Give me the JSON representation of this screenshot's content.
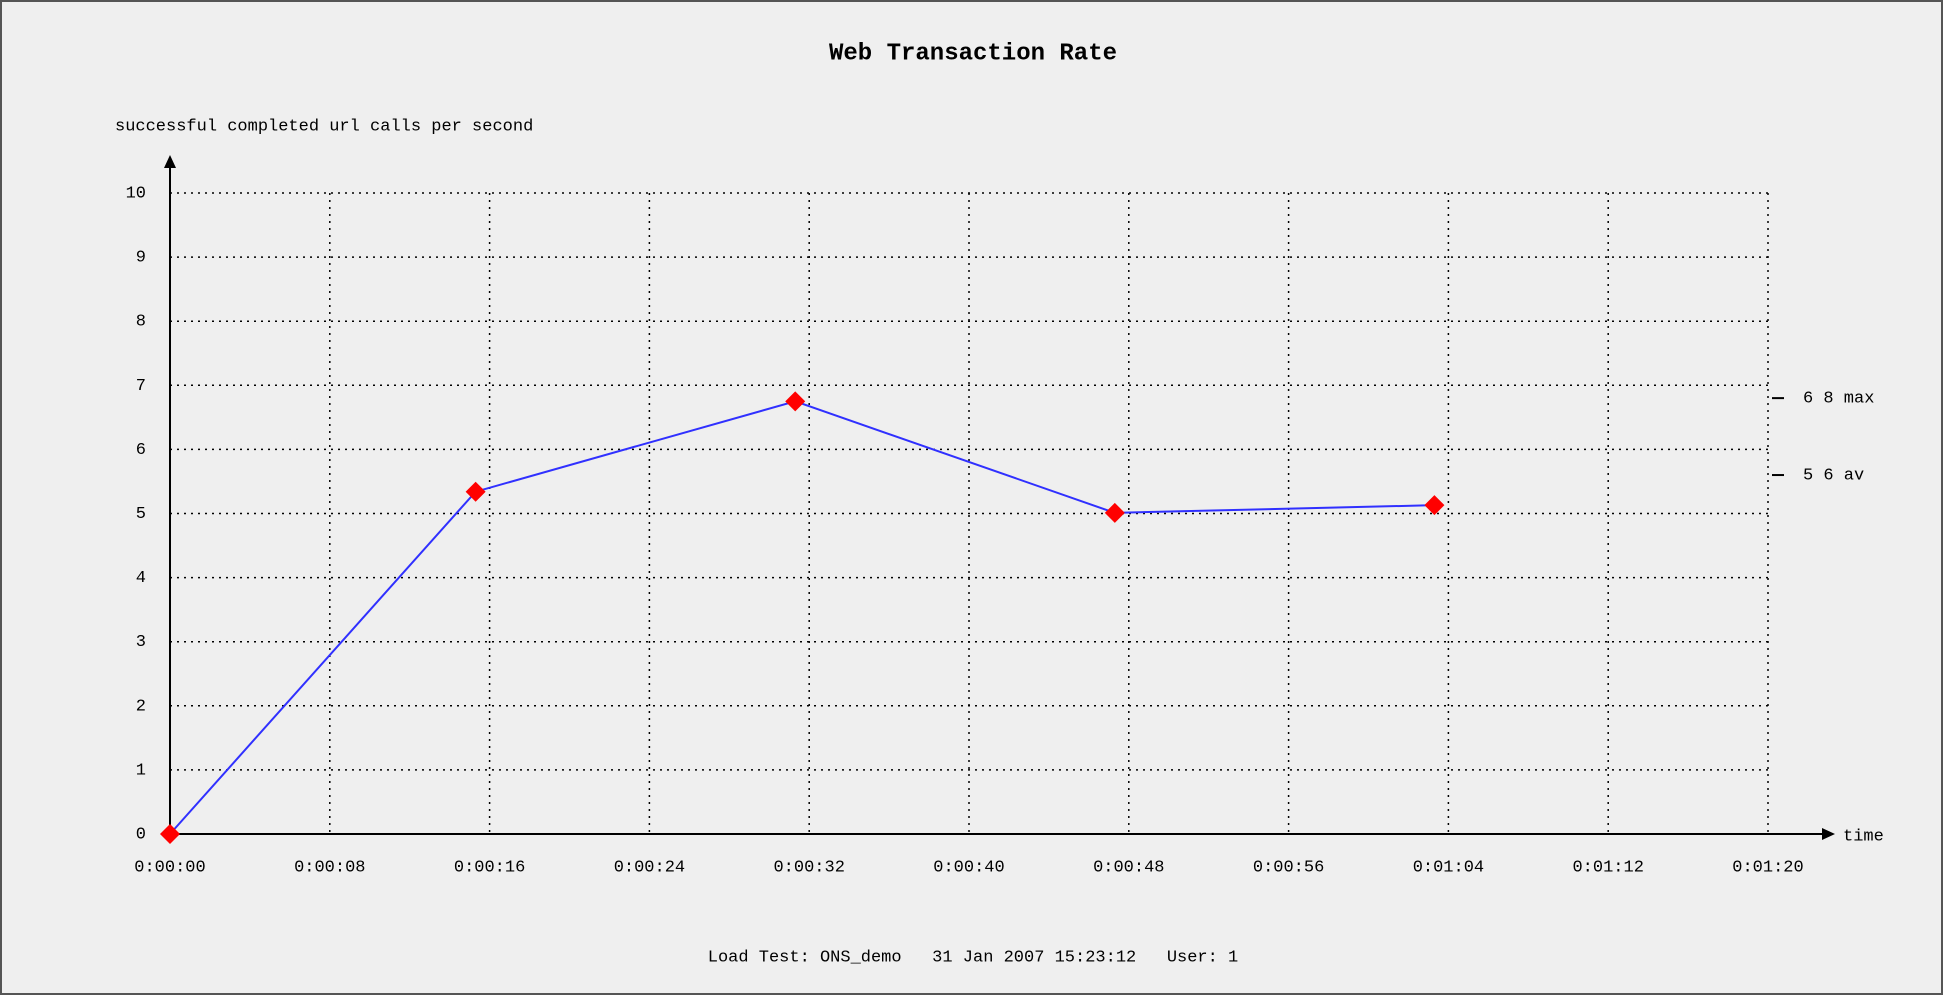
{
  "chart_data": {
    "type": "line",
    "title": "Web Transaction Rate",
    "y_label": "successful completed url calls per second",
    "x_label": "time",
    "footer": "Load Test: ONS_demo   31 Jan 2007 15:23:12   User: 1",
    "x": [
      0,
      15.3,
      31.3,
      47.3,
      63.3
    ],
    "values": [
      0,
      5.34,
      6.75,
      5.01,
      5.13
    ],
    "color": "#3030ff",
    "marker_color": "#ff0000",
    "xlim": [
      0,
      80
    ],
    "xticks": [
      {
        "value": 0,
        "label": "0:00:00"
      },
      {
        "value": 8,
        "label": "0:00:08"
      },
      {
        "value": 16,
        "label": "0:00:16"
      },
      {
        "value": 24,
        "label": "0:00:24"
      },
      {
        "value": 32,
        "label": "0:00:32"
      },
      {
        "value": 40,
        "label": "0:00:40"
      },
      {
        "value": 48,
        "label": "0:00:48"
      },
      {
        "value": 56,
        "label": "0:00:56"
      },
      {
        "value": 64,
        "label": "0:01:04"
      },
      {
        "value": 72,
        "label": "0:01:12"
      },
      {
        "value": 80,
        "label": "0:01:20"
      }
    ],
    "ylim": [
      0,
      10
    ],
    "yticks": [
      0,
      1,
      2,
      3,
      4,
      5,
      6,
      7,
      8,
      9,
      10
    ],
    "grid": true,
    "annotations": [
      {
        "value": 6.8,
        "label": "6 8 max"
      },
      {
        "value": 5.6,
        "label": "5 6 av"
      }
    ]
  }
}
